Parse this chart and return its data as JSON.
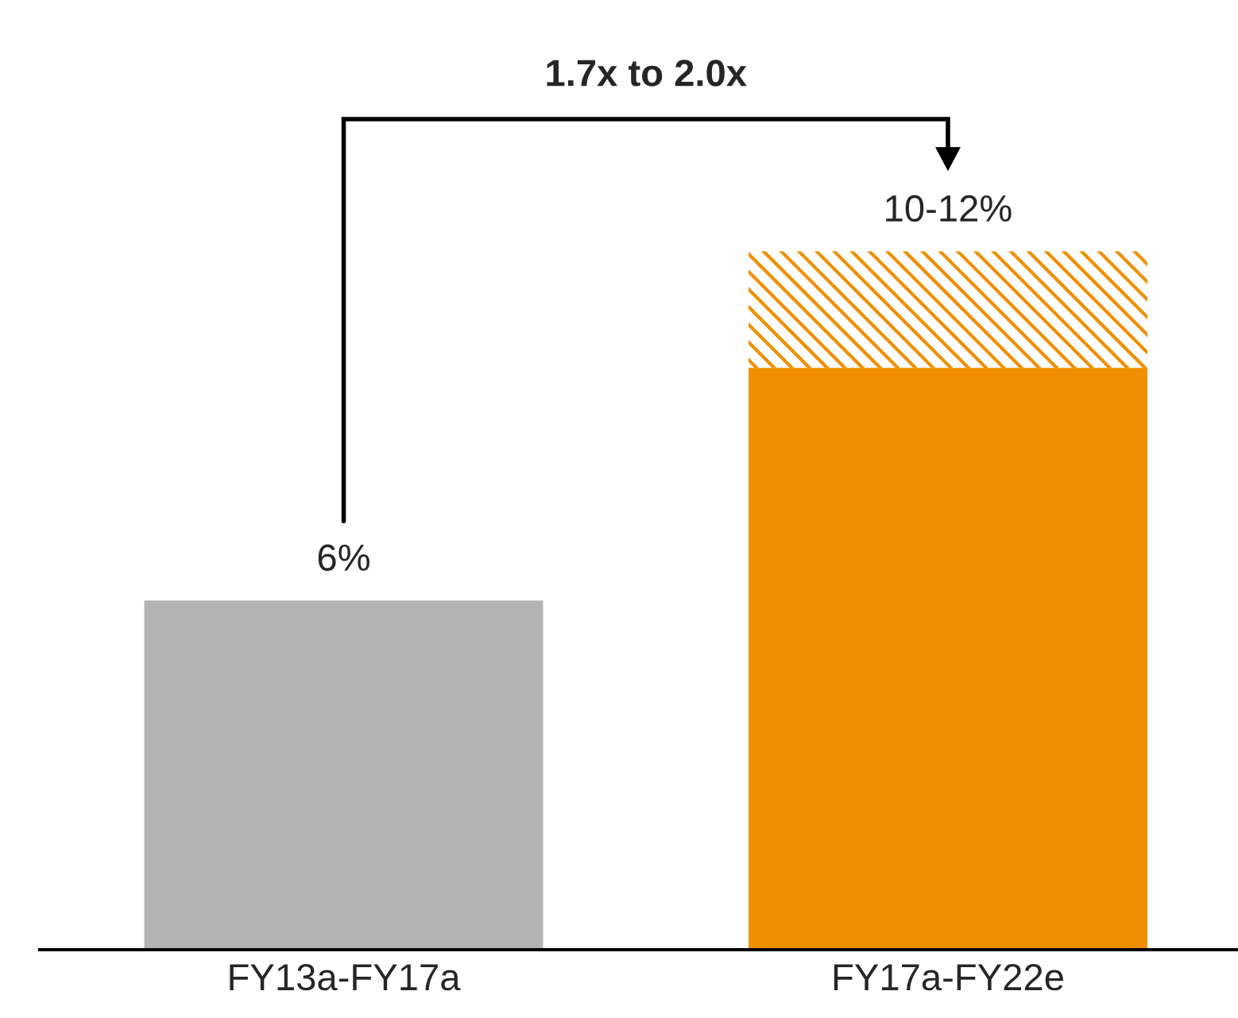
{
  "chart_data": {
    "type": "bar",
    "stacked": true,
    "categories": [
      "FY13a-FY17a",
      "FY17a-FY22e"
    ],
    "series": [
      {
        "colors": [
          "#b3b3b3",
          "#ef8f00"
        ],
        "values": [
          6,
          10
        ],
        "value_labels": [
          "6%",
          null
        ]
      },
      {
        "color": "#ef8f00",
        "values": [
          null,
          2
        ]
      }
    ],
    "totals": [
      null,
      "10-12%"
    ],
    "annotations": [
      "1.7x to 2.0x"
    ],
    "legend": false,
    "grid": false
  }
}
